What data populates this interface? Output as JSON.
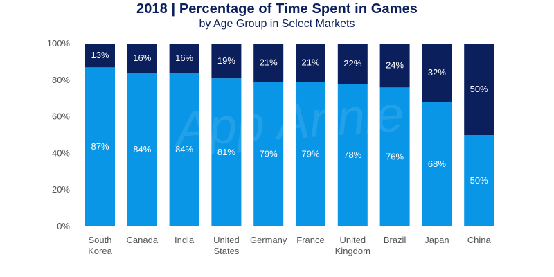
{
  "chart_data": {
    "type": "bar",
    "stacked": true,
    "title": "2018 | Percentage of Time Spent in Games",
    "subtitle": "by Age Group in Select Markets",
    "categories": [
      [
        "South",
        "Korea"
      ],
      [
        "Canada"
      ],
      [
        "India"
      ],
      [
        "United",
        "States"
      ],
      [
        "Germany"
      ],
      [
        "France"
      ],
      [
        "United",
        "Kingdom"
      ],
      [
        "Brazil"
      ],
      [
        "Japan"
      ],
      [
        "China"
      ]
    ],
    "series": [
      {
        "values": [
          87,
          84,
          84,
          81,
          79,
          79,
          78,
          76,
          68,
          50
        ],
        "color": "#0a96e6"
      },
      {
        "values": [
          13,
          16,
          16,
          19,
          21,
          21,
          22,
          24,
          32,
          50
        ],
        "color": "#0b1f5c"
      }
    ],
    "yticks": [
      "0%",
      "20%",
      "40%",
      "60%",
      "80%",
      "100%"
    ],
    "ylim": [
      0,
      100
    ],
    "grid": false,
    "watermark": "App Annie"
  }
}
